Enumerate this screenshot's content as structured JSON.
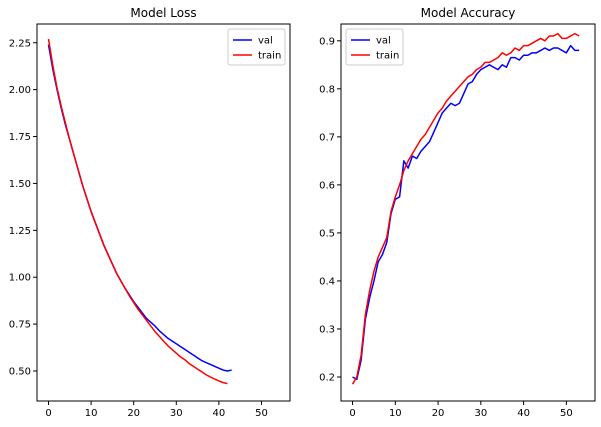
{
  "chart_data": [
    {
      "type": "line",
      "title": "Model Loss",
      "xlabel": "",
      "ylabel": "",
      "xlim": [
        -2.7,
        56.7
      ],
      "ylim": [
        0.34,
        2.35
      ],
      "xticks": [
        0,
        10,
        20,
        30,
        40,
        50
      ],
      "yticks": [
        0.5,
        0.75,
        1.0,
        1.25,
        1.5,
        1.75,
        2.0,
        2.25
      ],
      "ytick_labels": [
        "0.50",
        "0.75",
        "1.00",
        "1.25",
        "1.50",
        "1.75",
        "2.00",
        "2.25"
      ],
      "legend": "top-right",
      "grid": false,
      "series": [
        {
          "name": "val",
          "color": "#0000ff",
          "values": [
            2.24,
            2.11,
            2.0,
            1.9,
            1.81,
            1.73,
            1.65,
            1.57,
            1.49,
            1.42,
            1.35,
            1.29,
            1.23,
            1.17,
            1.12,
            1.07,
            1.02,
            0.98,
            0.94,
            0.905,
            0.87,
            0.84,
            0.81,
            0.78,
            0.76,
            0.74,
            0.715,
            0.695,
            0.675,
            0.66,
            0.645,
            0.63,
            0.615,
            0.6,
            0.585,
            0.57,
            0.555,
            0.545,
            0.535,
            0.525,
            0.515,
            0.505,
            0.5,
            0.505
          ]
        },
        {
          "name": "train",
          "color": "#ff0000",
          "values": [
            2.27,
            2.13,
            2.01,
            1.91,
            1.82,
            1.73,
            1.65,
            1.57,
            1.49,
            1.42,
            1.35,
            1.29,
            1.23,
            1.17,
            1.12,
            1.07,
            1.02,
            0.98,
            0.94,
            0.9,
            0.865,
            0.83,
            0.8,
            0.77,
            0.74,
            0.71,
            0.685,
            0.66,
            0.635,
            0.615,
            0.595,
            0.575,
            0.56,
            0.54,
            0.525,
            0.51,
            0.495,
            0.48,
            0.468,
            0.457,
            0.447,
            0.438,
            0.433
          ]
        }
      ]
    },
    {
      "type": "line",
      "title": "Model Accuracy",
      "xlabel": "",
      "ylabel": "",
      "xlim": [
        -2.7,
        56.7
      ],
      "ylim": [
        0.15,
        0.935
      ],
      "xticks": [
        0,
        10,
        20,
        30,
        40,
        50
      ],
      "yticks": [
        0.2,
        0.3,
        0.4,
        0.5,
        0.6,
        0.7,
        0.8,
        0.9
      ],
      "ytick_labels": [
        "0.2",
        "0.3",
        "0.4",
        "0.5",
        "0.6",
        "0.7",
        "0.8",
        "0.9"
      ],
      "legend": "top-left",
      "grid": false,
      "series": [
        {
          "name": "val",
          "color": "#0000ff",
          "values": [
            0.2,
            0.195,
            0.235,
            0.32,
            0.365,
            0.4,
            0.44,
            0.455,
            0.48,
            0.54,
            0.57,
            0.575,
            0.65,
            0.635,
            0.66,
            0.655,
            0.67,
            0.68,
            0.69,
            0.71,
            0.73,
            0.75,
            0.76,
            0.77,
            0.765,
            0.77,
            0.79,
            0.81,
            0.815,
            0.83,
            0.84,
            0.845,
            0.85,
            0.845,
            0.84,
            0.85,
            0.845,
            0.865,
            0.865,
            0.86,
            0.87,
            0.87,
            0.875,
            0.875,
            0.88,
            0.885,
            0.88,
            0.885,
            0.885,
            0.88,
            0.875,
            0.89,
            0.88,
            0.88
          ]
        },
        {
          "name": "train",
          "color": "#ff0000",
          "values": [
            0.185,
            0.2,
            0.245,
            0.33,
            0.38,
            0.42,
            0.45,
            0.47,
            0.49,
            0.545,
            0.575,
            0.6,
            0.63,
            0.65,
            0.665,
            0.68,
            0.695,
            0.705,
            0.72,
            0.735,
            0.75,
            0.76,
            0.775,
            0.785,
            0.795,
            0.805,
            0.815,
            0.825,
            0.83,
            0.84,
            0.845,
            0.855,
            0.855,
            0.86,
            0.865,
            0.875,
            0.87,
            0.875,
            0.885,
            0.88,
            0.89,
            0.89,
            0.895,
            0.9,
            0.905,
            0.9,
            0.91,
            0.91,
            0.915,
            0.905,
            0.905,
            0.91,
            0.915,
            0.91
          ]
        }
      ]
    }
  ]
}
